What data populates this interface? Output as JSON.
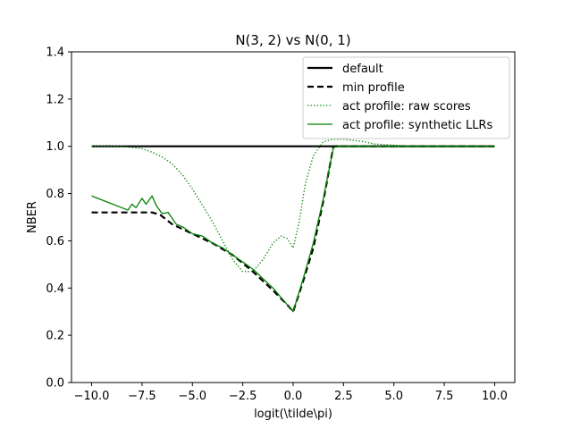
{
  "chart_data": {
    "type": "line",
    "title": "N(3, 2) vs N(0, 1)",
    "xlabel": "logit(\\tilde\\pi)",
    "ylabel": "NBER",
    "xlim": [
      -11,
      11
    ],
    "ylim": [
      0,
      1.4
    ],
    "xticks": [
      -10,
      -7.5,
      -5,
      -2.5,
      0,
      2.5,
      5,
      7.5,
      10
    ],
    "xtick_labels": [
      "−10.0",
      "−7.5",
      "−5.0",
      "−2.5",
      "0.0",
      "2.5",
      "5.0",
      "7.5",
      "10.0"
    ],
    "yticks": [
      0,
      0.2,
      0.4,
      0.6,
      0.8,
      1.0,
      1.2,
      1.4
    ],
    "ytick_labels": [
      "0.0",
      "0.2",
      "0.4",
      "0.6",
      "0.8",
      "1.0",
      "1.2",
      "1.4"
    ],
    "grid": false,
    "legend_position": "top-right",
    "series": [
      {
        "name": "default",
        "style": "solid",
        "color": "#000000",
        "width": 2.2,
        "x": [
          -10,
          10
        ],
        "y": [
          1.0,
          1.0
        ]
      },
      {
        "name": "min profile",
        "style": "dashed",
        "color": "#000000",
        "width": 2.2,
        "x": [
          -10,
          -7.0,
          -6.6,
          -6.0,
          -5.0,
          -4.0,
          -3.0,
          -2.0,
          -1.0,
          -0.3,
          0,
          0.5,
          1.0,
          1.5,
          2.0,
          10
        ],
        "y": [
          0.72,
          0.72,
          0.71,
          0.67,
          0.63,
          0.59,
          0.54,
          0.47,
          0.39,
          0.33,
          0.3,
          0.43,
          0.57,
          0.77,
          1.0,
          1.0
        ]
      },
      {
        "name": "act profile: raw scores",
        "style": "dotted",
        "color": "#008000",
        "width": 1.3,
        "x": [
          -10,
          -9,
          -8.5,
          -8,
          -7.5,
          -7,
          -6.5,
          -6,
          -5.5,
          -5,
          -4.5,
          -4,
          -3.5,
          -3,
          -2.5,
          -2.0,
          -1.5,
          -1.0,
          -0.6,
          -0.3,
          0,
          0.3,
          0.6,
          1.0,
          1.5,
          2.0,
          2.5,
          3.0,
          3.5,
          4.0,
          5.0,
          6.0,
          10
        ],
        "y": [
          1.0,
          1.0,
          1.0,
          0.995,
          0.99,
          0.975,
          0.955,
          0.925,
          0.88,
          0.82,
          0.75,
          0.68,
          0.6,
          0.52,
          0.47,
          0.47,
          0.52,
          0.59,
          0.62,
          0.61,
          0.57,
          0.68,
          0.84,
          0.96,
          1.02,
          1.03,
          1.03,
          1.025,
          1.02,
          1.01,
          1.005,
          1.0,
          1.0
        ]
      },
      {
        "name": "act profile: synthetic LLRs",
        "style": "solid",
        "color": "#008000",
        "width": 1.3,
        "x": [
          -10,
          -8.2,
          -8.0,
          -7.8,
          -7.5,
          -7.3,
          -7.0,
          -6.8,
          -6.5,
          -6.2,
          -5.8,
          -5.5,
          -5.0,
          -4.5,
          -4.0,
          -3.5,
          -3.0,
          -2.5,
          -2.0,
          -1.5,
          -1.0,
          -0.5,
          0,
          0.5,
          1.0,
          1.5,
          2.0,
          2.3,
          10
        ],
        "y": [
          0.79,
          0.73,
          0.755,
          0.74,
          0.78,
          0.755,
          0.79,
          0.75,
          0.715,
          0.72,
          0.67,
          0.66,
          0.63,
          0.62,
          0.59,
          0.57,
          0.54,
          0.51,
          0.48,
          0.44,
          0.4,
          0.35,
          0.3,
          0.44,
          0.59,
          0.78,
          0.995,
          1.0,
          1.0
        ]
      }
    ]
  }
}
